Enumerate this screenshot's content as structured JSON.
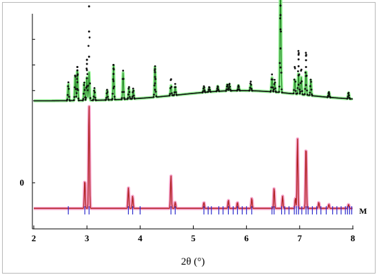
{
  "chart_data": {
    "type": "scatter",
    "title": "",
    "xlabel": "2θ (°)",
    "ylabel": "",
    "xlim": [
      2,
      8
    ],
    "ylim": [
      -0.45,
      1.65
    ],
    "x_ticks": [
      "2",
      "3",
      "4",
      "5",
      "6",
      "7",
      "8"
    ],
    "y_tick_labels": [
      {
        "value": 0,
        "label": "0"
      }
    ],
    "grid": false,
    "annotations": [
      {
        "text": "M",
        "x": 8.12,
        "y": -0.34
      }
    ],
    "series": [
      {
        "role": "observed-points",
        "color": "#111111",
        "offset": 0.8,
        "baseline": 0.0,
        "hump": {
          "center": 5.9,
          "width": 1.6,
          "height": 0.1
        },
        "peaks": [
          [
            2.65,
            0.18
          ],
          [
            2.78,
            0.26
          ],
          [
            2.82,
            0.33
          ],
          [
            2.95,
            0.18
          ],
          [
            3.0,
            0.4
          ],
          [
            3.04,
            1.23
          ],
          [
            3.14,
            0.12
          ],
          [
            3.38,
            0.1
          ],
          [
            3.5,
            0.35
          ],
          [
            3.68,
            0.28
          ],
          [
            3.79,
            0.12
          ],
          [
            3.87,
            0.1
          ],
          [
            4.28,
            0.31
          ],
          [
            4.58,
            0.17
          ],
          [
            4.66,
            0.11
          ],
          [
            5.2,
            0.06
          ],
          [
            5.3,
            0.05
          ],
          [
            5.46,
            0.05
          ],
          [
            5.64,
            0.06
          ],
          [
            5.68,
            0.07
          ],
          [
            5.85,
            0.05
          ],
          [
            6.08,
            0.09
          ],
          [
            6.48,
            0.17
          ],
          [
            6.53,
            0.12
          ],
          [
            6.64,
            0.93
          ],
          [
            6.91,
            0.28
          ],
          [
            6.98,
            0.45
          ],
          [
            7.03,
            0.26
          ],
          [
            7.12,
            0.44
          ],
          [
            7.21,
            0.16
          ],
          [
            7.55,
            0.05
          ],
          [
            7.92,
            0.06
          ]
        ]
      },
      {
        "role": "calculated-line",
        "color": "#2b8f2b",
        "halo": "#9ef59e",
        "offset": 0.8,
        "baseline": 0.0,
        "hump": {
          "center": 5.9,
          "width": 1.6,
          "height": 0.1
        },
        "peaks": [
          [
            2.65,
            0.17
          ],
          [
            2.78,
            0.24
          ],
          [
            2.82,
            0.31
          ],
          [
            2.95,
            0.17
          ],
          [
            3.0,
            0.24
          ],
          [
            3.04,
            0.28
          ],
          [
            3.14,
            0.11
          ],
          [
            3.38,
            0.1
          ],
          [
            3.5,
            0.33
          ],
          [
            3.68,
            0.26
          ],
          [
            3.79,
            0.11
          ],
          [
            3.87,
            0.09
          ],
          [
            4.28,
            0.3
          ],
          [
            4.58,
            0.1
          ],
          [
            4.66,
            0.08
          ],
          [
            5.2,
            0.05
          ],
          [
            5.3,
            0.04
          ],
          [
            5.46,
            0.05
          ],
          [
            5.64,
            0.06
          ],
          [
            5.68,
            0.06
          ],
          [
            5.85,
            0.05
          ],
          [
            6.08,
            0.06
          ],
          [
            6.48,
            0.14
          ],
          [
            6.53,
            0.1
          ],
          [
            6.64,
            1.22
          ],
          [
            6.91,
            0.15
          ],
          [
            6.98,
            0.22
          ],
          [
            7.03,
            0.17
          ],
          [
            7.12,
            0.25
          ],
          [
            7.21,
            0.15
          ],
          [
            7.55,
            0.05
          ],
          [
            7.92,
            0.06
          ]
        ]
      },
      {
        "role": "calculated-line",
        "color": "#b02020",
        "halo": "#f5a0c8",
        "offset": 0.0,
        "baseline": -0.25,
        "peaks": [
          [
            2.96,
            0.28
          ],
          [
            3.04,
            1.02
          ],
          [
            3.78,
            0.2
          ],
          [
            3.86,
            0.12
          ],
          [
            4.58,
            0.32
          ],
          [
            4.66,
            0.06
          ],
          [
            5.2,
            0.06
          ],
          [
            5.66,
            0.08
          ],
          [
            5.83,
            0.06
          ],
          [
            6.1,
            0.1
          ],
          [
            6.52,
            0.2
          ],
          [
            6.68,
            0.12
          ],
          [
            6.92,
            0.1
          ],
          [
            6.96,
            0.68
          ],
          [
            7.12,
            0.62
          ],
          [
            7.36,
            0.06
          ],
          [
            7.55,
            0.04
          ],
          [
            7.92,
            0.04
          ]
        ]
      }
    ],
    "reflection_ticks": {
      "name": "M",
      "color": "#2b2bcc",
      "x": [
        2.65,
        2.96,
        3.04,
        3.78,
        3.86,
        4.0,
        4.58,
        4.66,
        5.2,
        5.28,
        5.34,
        5.48,
        5.56,
        5.66,
        5.75,
        5.83,
        5.92,
        6.0,
        6.1,
        6.48,
        6.52,
        6.66,
        6.72,
        6.8,
        6.9,
        6.94,
        6.98,
        7.04,
        7.12,
        7.16,
        7.24,
        7.32,
        7.4,
        7.5,
        7.62,
        7.7,
        7.78,
        7.86,
        7.9,
        7.94,
        7.98
      ]
    }
  }
}
